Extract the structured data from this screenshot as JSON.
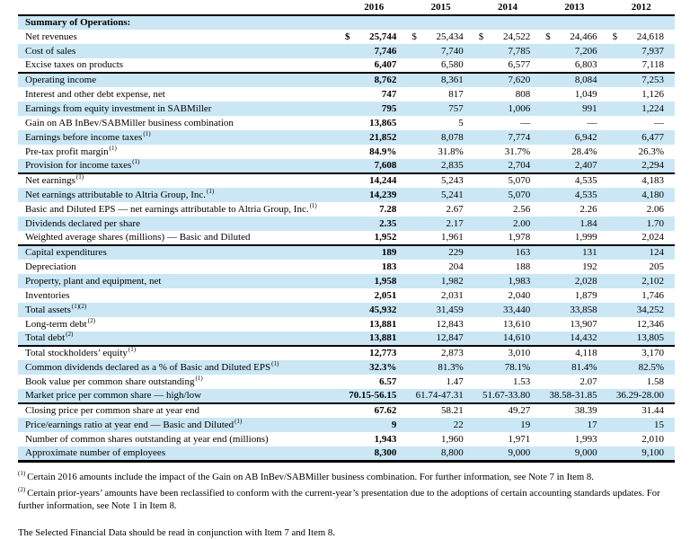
{
  "colors": {
    "row_highlight": "#cbe7f5",
    "rule": "#000000",
    "text": "#000000"
  },
  "table": {
    "currency_symbol": "$",
    "years": [
      "2016",
      "2015",
      "2014",
      "2013",
      "2012"
    ],
    "rows": [
      {
        "label": "Summary of Operations:",
        "sup": "",
        "header": true,
        "values": []
      },
      {
        "label": "Net revenues",
        "sup": "",
        "dollar": true,
        "values": [
          "25,744",
          "25,434",
          "24,522",
          "24,466",
          "24,618"
        ]
      },
      {
        "label": "Cost of sales",
        "sup": "",
        "values": [
          "7,746",
          "7,740",
          "7,785",
          "7,206",
          "7,937"
        ]
      },
      {
        "label": "Excise taxes on products",
        "sup": "",
        "values": [
          "6,407",
          "6,580",
          "6,577",
          "6,803",
          "7,118"
        ]
      },
      {
        "label": "Operating income",
        "sup": "",
        "section_break": true,
        "values": [
          "8,762",
          "8,361",
          "7,620",
          "8,084",
          "7,253"
        ]
      },
      {
        "label": "Interest and other debt expense, net",
        "sup": "",
        "values": [
          "747",
          "817",
          "808",
          "1,049",
          "1,126"
        ]
      },
      {
        "label": "Earnings from equity investment in SABMiller",
        "sup": "",
        "values": [
          "795",
          "757",
          "1,006",
          "991",
          "1,224"
        ]
      },
      {
        "label": "Gain on AB InBev/SABMiller business combination",
        "sup": "",
        "values": [
          "13,865",
          "5",
          "—",
          "—",
          "—"
        ]
      },
      {
        "label": "Earnings before income taxes",
        "sup": "(1)",
        "values": [
          "21,852",
          "8,078",
          "7,774",
          "6,942",
          "6,477"
        ]
      },
      {
        "label": "Pre-tax profit margin",
        "sup": "(1)",
        "values": [
          "84.9%",
          "31.8%",
          "31.7%",
          "28.4%",
          "26.3%"
        ]
      },
      {
        "label": "Provision for income taxes",
        "sup": "(1)",
        "values": [
          "7,608",
          "2,835",
          "2,704",
          "2,407",
          "2,294"
        ]
      },
      {
        "label": "Net earnings",
        "sup": "(1)",
        "section_break": true,
        "values": [
          "14,244",
          "5,243",
          "5,070",
          "4,535",
          "4,183"
        ]
      },
      {
        "label": "Net earnings attributable to Altria Group, Inc.",
        "sup": "(1)",
        "values": [
          "14,239",
          "5,241",
          "5,070",
          "4,535",
          "4,180"
        ]
      },
      {
        "label": "Basic and Diluted EPS — net earnings attributable to Altria Group, Inc.",
        "sup": "(1)",
        "values": [
          "7.28",
          "2.67",
          "2.56",
          "2.26",
          "2.06"
        ]
      },
      {
        "label": "Dividends declared per share",
        "sup": "",
        "values": [
          "2.35",
          "2.17",
          "2.00",
          "1.84",
          "1.70"
        ]
      },
      {
        "label": "Weighted average shares (millions) — Basic and Diluted",
        "sup": "",
        "values": [
          "1,952",
          "1,961",
          "1,978",
          "1,999",
          "2,024"
        ]
      },
      {
        "label": "Capital expenditures",
        "sup": "",
        "section_break": true,
        "values": [
          "189",
          "229",
          "163",
          "131",
          "124"
        ]
      },
      {
        "label": "Depreciation",
        "sup": "",
        "values": [
          "183",
          "204",
          "188",
          "192",
          "205"
        ]
      },
      {
        "label": "Property, plant and equipment, net",
        "sup": "",
        "values": [
          "1,958",
          "1,982",
          "1,983",
          "2,028",
          "2,102"
        ]
      },
      {
        "label": "Inventories",
        "sup": "",
        "values": [
          "2,051",
          "2,031",
          "2,040",
          "1,879",
          "1,746"
        ]
      },
      {
        "label": "Total assets",
        "sup": "(1)(2)",
        "values": [
          "45,932",
          "31,459",
          "33,440",
          "33,858",
          "34,252"
        ]
      },
      {
        "label": "Long-term debt",
        "sup": "(2)",
        "values": [
          "13,881",
          "12,843",
          "13,610",
          "13,907",
          "12,346"
        ]
      },
      {
        "label": "Total debt",
        "sup": "(2)",
        "values": [
          "13,881",
          "12,847",
          "14,610",
          "14,432",
          "13,805"
        ]
      },
      {
        "label": "Total stockholders’ equity",
        "sup": "(1)",
        "section_break": true,
        "values": [
          "12,773",
          "2,873",
          "3,010",
          "4,118",
          "3,170"
        ]
      },
      {
        "label": "Common dividends declared as a % of Basic and Diluted EPS",
        "sup": "(1)",
        "values": [
          "32.3%",
          "81.3%",
          "78.1%",
          "81.4%",
          "82.5%"
        ]
      },
      {
        "label": "Book value per common share outstanding",
        "sup": "(1)",
        "values": [
          "6.57",
          "1.47",
          "1.53",
          "2.07",
          "1.58"
        ]
      },
      {
        "label": "Market price per common share — high/low",
        "sup": "",
        "values": [
          "70.15-56.15",
          "61.74-47.31",
          "51.67-33.80",
          "38.58-31.85",
          "36.29-28.00"
        ]
      },
      {
        "label": "Closing price per common share at year end",
        "sup": "",
        "section_break": true,
        "values": [
          "67.62",
          "58.21",
          "49.27",
          "38.39",
          "31.44"
        ]
      },
      {
        "label": "Price/earnings ratio at year end — Basic and Diluted",
        "sup": "(1)",
        "values": [
          "9",
          "22",
          "19",
          "17",
          "15"
        ]
      },
      {
        "label": "Number of common shares outstanding at year end (millions)",
        "sup": "",
        "values": [
          "1,943",
          "1,960",
          "1,971",
          "1,993",
          "2,010"
        ]
      },
      {
        "label": "Approximate number of employees",
        "sup": "",
        "values": [
          "8,300",
          "8,800",
          "9,000",
          "9,000",
          "9,100"
        ]
      }
    ]
  },
  "footnotes": [
    {
      "marker": "(1)",
      "text": "Certain 2016 amounts include the impact of the Gain on AB InBev/SABMiller business combination. For further information, see Note 7 in Item 8."
    },
    {
      "marker": "(2)",
      "text": "Certain prior-years’ amounts have been reclassified to conform with the current-year’s presentation due to the adoptions of certain accounting standards updates. For further information, see Note 1 in Item 8."
    }
  ],
  "closing_note": "The Selected Financial Data should be read in conjunction with Item 7 and Item 8."
}
